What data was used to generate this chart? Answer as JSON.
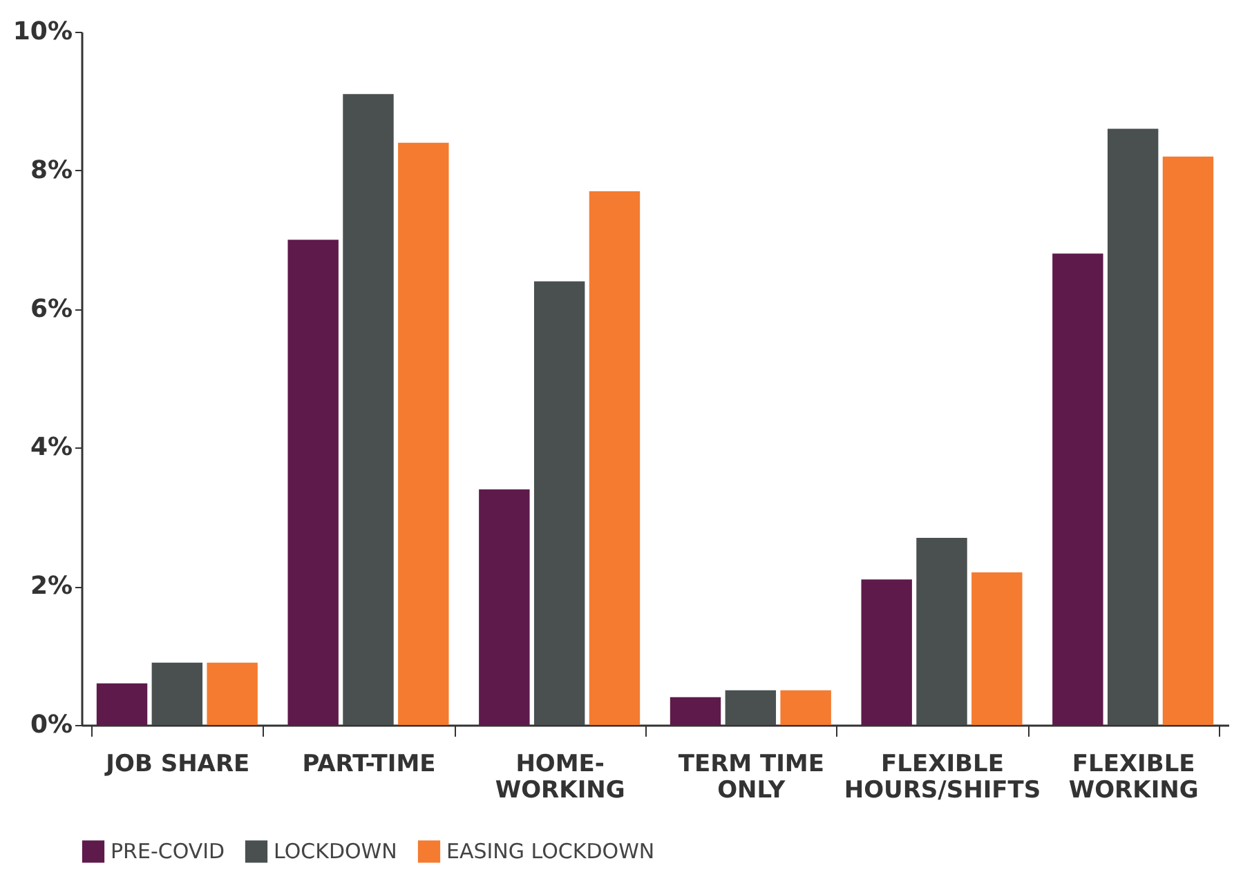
{
  "chart_data": {
    "type": "bar",
    "categories": [
      "JOB SHARE",
      "PART-TIME",
      "HOME-\nWORKING",
      "TERM TIME\nONLY",
      "FLEXIBLE\nHOURS/SHIFTS",
      "FLEXIBLE\nWORKING"
    ],
    "series": [
      {
        "name": "PRE-COVID",
        "color": "#5e1a4a",
        "values": [
          0.6,
          7.0,
          3.4,
          0.4,
          2.1,
          6.8
        ]
      },
      {
        "name": "LOCKDOWN",
        "color": "#4a4f4f",
        "values": [
          0.9,
          9.1,
          6.4,
          0.5,
          2.7,
          8.6
        ]
      },
      {
        "name": "EASING LOCKDOWN",
        "color": "#f47b30",
        "values": [
          0.9,
          8.4,
          7.7,
          0.5,
          2.2,
          8.2
        ]
      }
    ],
    "ylim": [
      0,
      10
    ],
    "yticks": [
      {
        "value": 0,
        "label": "0%"
      },
      {
        "value": 2,
        "label": "2%"
      },
      {
        "value": 4,
        "label": "4%"
      },
      {
        "value": 6,
        "label": "6%"
      },
      {
        "value": 8,
        "label": "8%"
      },
      {
        "value": 10,
        "label": "10%"
      }
    ],
    "grid": false,
    "legend": "bottom left"
  }
}
